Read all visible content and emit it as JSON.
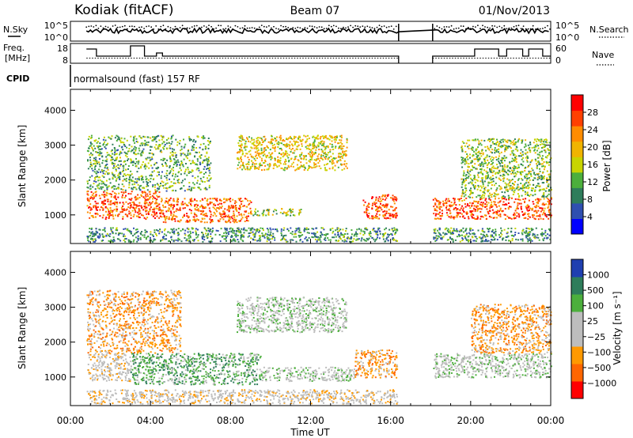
{
  "header": {
    "station": "Kodiak (fitACF)",
    "beam": "Beam 07",
    "date": "01/Nov/2013"
  },
  "summary": {
    "nsky_label": "N.Sky",
    "nsearch_label": "N.Search",
    "noise_ticks": [
      "10^5",
      "10^0"
    ],
    "freq_label_line1": "Freq.",
    "freq_label_line2": "[MHz]",
    "freq_ticks": [
      "18",
      "8"
    ],
    "nave_label": "Nave",
    "nave_ticks": [
      "60",
      "0"
    ],
    "cpid_label": "CPID",
    "cpid_text": "normalsound (fast) 157 RF"
  },
  "colors": {
    "power": [
      "#0000ff",
      "#2f4fb0",
      "#2e7d5b",
      "#4caf3c",
      "#c8d400",
      "#f0b400",
      "#ff8c00",
      "#ff4000",
      "#ff0000"
    ],
    "velocity": [
      "#1f3fb0",
      "#2e7d5b",
      "#4caf3c",
      "#bdbdbd",
      "#bdbdbd",
      "#ff9900",
      "#ff6600",
      "#ff0000"
    ]
  },
  "chart_data": [
    {
      "type": "heatmap",
      "name": "power",
      "ylabel": "Slant Range [km]",
      "ylim": [
        180,
        4600
      ],
      "yticks": [
        1000,
        2000,
        3000,
        4000
      ],
      "xlim": [
        0,
        24
      ],
      "colorbar_label": "Power [dB]",
      "colorbar_ticks": [
        "28",
        "24",
        "20",
        "16",
        "12",
        "8",
        "4"
      ],
      "colorbar_range": [
        0,
        32
      ],
      "data_gap": [
        16.4,
        18.1
      ],
      "regions": [
        {
          "t": [
            0.8,
            4.5
          ],
          "r": [
            900,
            1700
          ],
          "level": 26
        },
        {
          "t": [
            4.5,
            9.0
          ],
          "r": [
            800,
            1500
          ],
          "level": 25
        },
        {
          "t": [
            9.0,
            11.5
          ],
          "r": [
            1000,
            1200
          ],
          "level": 14
        },
        {
          "t": [
            14.6,
            16.3
          ],
          "r": [
            900,
            1600
          ],
          "level": 27
        },
        {
          "t": [
            8.3,
            13.8
          ],
          "r": [
            2300,
            3300
          ],
          "level": 18
        },
        {
          "t": [
            0.8,
            7.0
          ],
          "r": [
            1700,
            3300
          ],
          "level": 12
        },
        {
          "t": [
            18.1,
            24.0
          ],
          "r": [
            900,
            1500
          ],
          "level": 26
        },
        {
          "t": [
            19.5,
            24.0
          ],
          "r": [
            1500,
            3200
          ],
          "level": 14
        },
        {
          "t": [
            0.8,
            16.3
          ],
          "r": [
            250,
            650
          ],
          "level": 10
        },
        {
          "t": [
            18.1,
            24.0
          ],
          "r": [
            250,
            650
          ],
          "level": 10
        }
      ]
    },
    {
      "type": "heatmap",
      "name": "velocity",
      "ylabel": "Slant Range [km]",
      "ylim": [
        180,
        4600
      ],
      "yticks": [
        1000,
        2000,
        3000,
        4000
      ],
      "xlim": [
        0,
        24
      ],
      "xticks": [
        "00:00",
        "04:00",
        "08:00",
        "12:00",
        "16:00",
        "20:00",
        "00:00"
      ],
      "xlabel": "Time UT",
      "colorbar_label": "Velocity [m s⁻¹]",
      "colorbar_ticks": [
        "1000",
        "500",
        "100",
        "25",
        "−25",
        "−100",
        "−500",
        "−1000"
      ],
      "data_gap": [
        16.4,
        18.1
      ],
      "regions": [
        {
          "t": [
            0.8,
            3.0
          ],
          "r": [
            900,
            1700
          ],
          "level": 4
        },
        {
          "t": [
            3.0,
            9.5
          ],
          "r": [
            800,
            1700
          ],
          "level": 2
        },
        {
          "t": [
            9.5,
            14.2
          ],
          "r": [
            900,
            1300
          ],
          "level": 3
        },
        {
          "t": [
            14.2,
            16.3
          ],
          "r": [
            1000,
            1800
          ],
          "level": 5
        },
        {
          "t": [
            8.3,
            13.8
          ],
          "r": [
            2300,
            3300
          ],
          "level": 3
        },
        {
          "t": [
            0.8,
            5.5
          ],
          "r": [
            1700,
            3500
          ],
          "level": 5
        },
        {
          "t": [
            18.1,
            24.0
          ],
          "r": [
            1000,
            1700
          ],
          "level": 3
        },
        {
          "t": [
            20.0,
            24.0
          ],
          "r": [
            1700,
            3100
          ],
          "level": 5
        },
        {
          "t": [
            0.8,
            16.3
          ],
          "r": [
            250,
            650
          ],
          "level": 4
        }
      ]
    }
  ]
}
